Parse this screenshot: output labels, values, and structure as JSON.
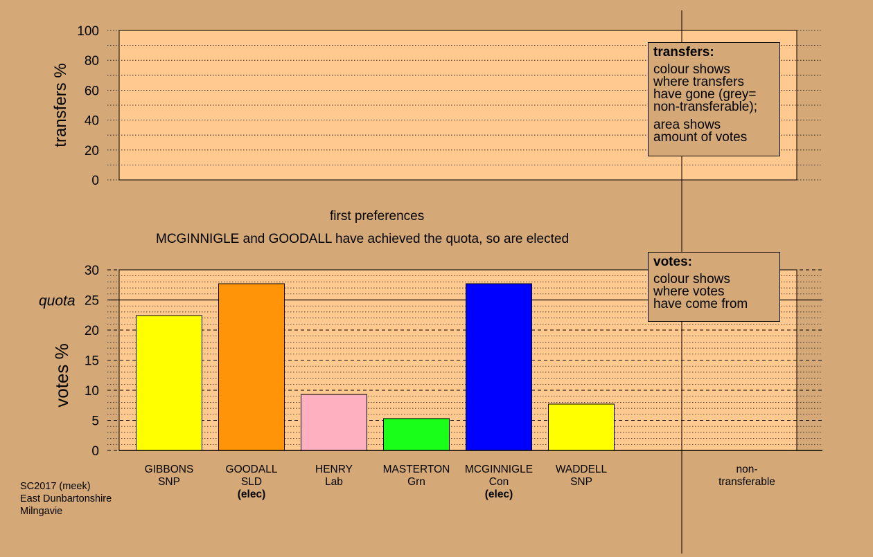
{
  "colors": {
    "background": "#d4a977",
    "plot_area": "#ffc98f",
    "grid": "#000000"
  },
  "captions": {
    "stage": "first preferences",
    "status": "MCGINNIGLE and GOODALL have achieved the quota, so are elected"
  },
  "legends": {
    "transfers": {
      "title": "transfers:",
      "lines_a": [
        "colour shows",
        "where transfers",
        "have gone (grey=",
        "non-transferable);"
      ],
      "lines_b": [
        "area shows",
        "amount of votes"
      ]
    },
    "votes": {
      "title": "votes:",
      "lines_a": [
        "colour shows",
        "where votes",
        "have come from"
      ]
    }
  },
  "footer": {
    "lines": [
      "SC2017 (meek)",
      "East Dunbartonshire",
      "Milngavie"
    ]
  },
  "chart_data": [
    {
      "type": "bar",
      "ylabel": "transfers %",
      "ylim": [
        0,
        100
      ],
      "yticks": [
        0,
        20,
        40,
        60,
        80,
        100
      ],
      "series": [],
      "grid": "dotted"
    },
    {
      "type": "bar",
      "ylabel": "votes %",
      "ylim": [
        0,
        30
      ],
      "yticks": [
        0,
        5,
        10,
        15,
        20,
        25,
        30
      ],
      "quota": {
        "label": "quota",
        "value": 25
      },
      "grid": "dashed",
      "categories": [
        {
          "name": "GIBBONS",
          "party": "SNP",
          "value": 22.4,
          "color": "#ffff00",
          "elected": ""
        },
        {
          "name": "GOODALL",
          "party": "SLD",
          "value": 27.7,
          "color": "#ff9408",
          "elected": "(elec)"
        },
        {
          "name": "HENRY",
          "party": "Lab",
          "value": 9.3,
          "color": "#ffb0c0",
          "elected": ""
        },
        {
          "name": "MASTERTON",
          "party": "Grn",
          "value": 5.3,
          "color": "#1aff1a",
          "elected": ""
        },
        {
          "name": "MCGINNIGLE",
          "party": "Con",
          "value": 27.7,
          "color": "#0000ff",
          "elected": "(elec)"
        },
        {
          "name": "WADDELL",
          "party": "SNP",
          "value": 7.7,
          "color": "#ffff00",
          "elected": ""
        }
      ],
      "extra_category": {
        "line1": "non-",
        "line2": "transferable"
      }
    }
  ]
}
